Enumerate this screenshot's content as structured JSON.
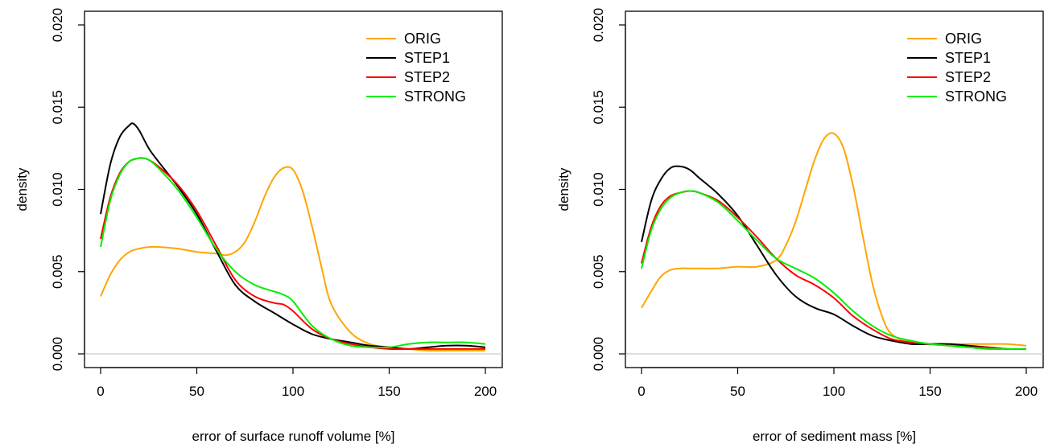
{
  "chart_data": [
    {
      "type": "line",
      "xlabel": "error of surface runoff volume [%]",
      "ylabel": "density",
      "xlim": [
        0,
        200
      ],
      "ylim": [
        0,
        0.02
      ],
      "xticks": [
        "0",
        "50",
        "100",
        "150",
        "200"
      ],
      "yticks": [
        "0.000",
        "0.005",
        "0.010",
        "0.015",
        "0.020"
      ],
      "legend_position": "top-right",
      "series": [
        {
          "name": "ORIG",
          "color": "#FFA500",
          "x": [
            0,
            5,
            10,
            15,
            20,
            25,
            30,
            40,
            50,
            60,
            65,
            70,
            75,
            80,
            85,
            90,
            95,
            100,
            105,
            110,
            115,
            120,
            130,
            140,
            150,
            160,
            170,
            180,
            190,
            200
          ],
          "y": [
            0.0035,
            0.0048,
            0.0057,
            0.0062,
            0.0064,
            0.0065,
            0.0065,
            0.0064,
            0.0062,
            0.0061,
            0.006,
            0.0062,
            0.0068,
            0.008,
            0.0095,
            0.0107,
            0.0113,
            0.0112,
            0.0099,
            0.0077,
            0.0052,
            0.003,
            0.0013,
            0.0006,
            0.0004,
            0.0003,
            0.0002,
            0.0002,
            0.0002,
            0.0002
          ]
        },
        {
          "name": "STEP1",
          "color": "#000000",
          "x": [
            0,
            5,
            10,
            15,
            17,
            20,
            25,
            30,
            40,
            50,
            60,
            70,
            80,
            90,
            100,
            110,
            120,
            130,
            140,
            150,
            160,
            170,
            180,
            190,
            200
          ],
          "y": [
            0.0085,
            0.0115,
            0.0132,
            0.0139,
            0.014,
            0.0136,
            0.0125,
            0.0117,
            0.0102,
            0.0085,
            0.0063,
            0.0042,
            0.0032,
            0.0025,
            0.0018,
            0.0012,
            0.0009,
            0.0007,
            0.0005,
            0.0004,
            0.0003,
            0.0004,
            0.0005,
            0.0005,
            0.0004
          ]
        },
        {
          "name": "STEP2",
          "color": "#FF0000",
          "x": [
            0,
            5,
            10,
            15,
            20,
            22,
            25,
            30,
            40,
            50,
            60,
            70,
            80,
            90,
            95,
            100,
            110,
            120,
            130,
            140,
            150,
            160,
            170,
            180,
            190,
            200
          ],
          "y": [
            0.007,
            0.0095,
            0.011,
            0.0117,
            0.0119,
            0.0119,
            0.0118,
            0.0114,
            0.0103,
            0.0087,
            0.0066,
            0.0045,
            0.0035,
            0.0031,
            0.003,
            0.0026,
            0.0015,
            0.0009,
            0.0006,
            0.0004,
            0.0003,
            0.0003,
            0.0003,
            0.0003,
            0.0003,
            0.0003
          ]
        },
        {
          "name": "STRONG",
          "color": "#00EE00",
          "x": [
            0,
            5,
            10,
            15,
            20,
            22,
            25,
            30,
            40,
            50,
            60,
            70,
            80,
            90,
            95,
            100,
            110,
            120,
            130,
            140,
            150,
            160,
            170,
            180,
            190,
            200
          ],
          "y": [
            0.0065,
            0.0093,
            0.0109,
            0.0117,
            0.0119,
            0.0119,
            0.0118,
            0.0113,
            0.01,
            0.0083,
            0.0064,
            0.005,
            0.0042,
            0.0038,
            0.0036,
            0.0032,
            0.0017,
            0.0009,
            0.0005,
            0.0004,
            0.0004,
            0.0006,
            0.0007,
            0.0007,
            0.0007,
            0.0006
          ]
        }
      ]
    },
    {
      "type": "line",
      "xlabel": "error of sediment mass [%]",
      "ylabel": "density",
      "xlim": [
        0,
        200
      ],
      "ylim": [
        0,
        0.02
      ],
      "xticks": [
        "0",
        "50",
        "100",
        "150",
        "200"
      ],
      "yticks": [
        "0.000",
        "0.005",
        "0.010",
        "0.015",
        "0.020"
      ],
      "legend_position": "top-right",
      "series": [
        {
          "name": "ORIG",
          "color": "#FFA500",
          "x": [
            0,
            5,
            10,
            15,
            20,
            25,
            30,
            40,
            50,
            60,
            70,
            75,
            80,
            85,
            90,
            95,
            100,
            105,
            110,
            115,
            120,
            125,
            130,
            140,
            150,
            160,
            170,
            180,
            190,
            200
          ],
          "y": [
            0.0028,
            0.0038,
            0.0047,
            0.0051,
            0.0052,
            0.0052,
            0.0052,
            0.0052,
            0.0053,
            0.0053,
            0.0057,
            0.0066,
            0.008,
            0.0099,
            0.0118,
            0.0131,
            0.0134,
            0.0125,
            0.0102,
            0.0072,
            0.0043,
            0.0023,
            0.0012,
            0.0007,
            0.0006,
            0.0006,
            0.0006,
            0.0006,
            0.0006,
            0.0005
          ]
        },
        {
          "name": "STEP1",
          "color": "#000000",
          "x": [
            0,
            5,
            10,
            15,
            20,
            25,
            30,
            40,
            50,
            60,
            70,
            80,
            90,
            100,
            110,
            120,
            130,
            140,
            150,
            160,
            170,
            180,
            190,
            200
          ],
          "y": [
            0.0068,
            0.0093,
            0.0106,
            0.0113,
            0.0114,
            0.0112,
            0.0107,
            0.0097,
            0.0084,
            0.0066,
            0.0048,
            0.0035,
            0.0028,
            0.0024,
            0.0017,
            0.0011,
            0.0008,
            0.0006,
            0.0006,
            0.0006,
            0.0005,
            0.0004,
            0.0003,
            0.0003
          ]
        },
        {
          "name": "STEP2",
          "color": "#FF0000",
          "x": [
            0,
            5,
            10,
            15,
            20,
            25,
            30,
            40,
            50,
            60,
            70,
            80,
            90,
            100,
            110,
            120,
            130,
            140,
            150,
            160,
            170,
            180,
            190,
            200
          ],
          "y": [
            0.0055,
            0.0077,
            0.009,
            0.0096,
            0.0098,
            0.0099,
            0.0098,
            0.0093,
            0.0083,
            0.0071,
            0.0058,
            0.0048,
            0.0042,
            0.0034,
            0.0023,
            0.0015,
            0.0009,
            0.0007,
            0.0006,
            0.0005,
            0.0004,
            0.0004,
            0.0003,
            0.0003
          ]
        },
        {
          "name": "STRONG",
          "color": "#00EE00",
          "x": [
            0,
            5,
            10,
            15,
            20,
            25,
            30,
            40,
            50,
            60,
            70,
            80,
            90,
            100,
            110,
            120,
            130,
            140,
            150,
            160,
            170,
            180,
            190,
            200
          ],
          "y": [
            0.0052,
            0.0075,
            0.0088,
            0.0095,
            0.0098,
            0.0099,
            0.0098,
            0.0092,
            0.0081,
            0.0069,
            0.0058,
            0.0052,
            0.0046,
            0.0037,
            0.0026,
            0.0017,
            0.0011,
            0.0008,
            0.0006,
            0.0005,
            0.0004,
            0.0003,
            0.0003,
            0.0003
          ]
        }
      ]
    }
  ]
}
